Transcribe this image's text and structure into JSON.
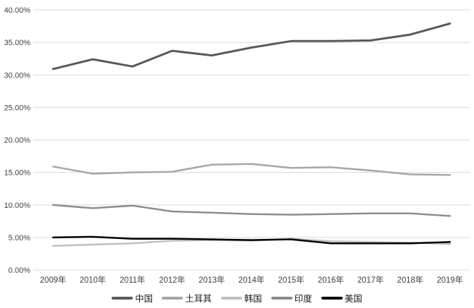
{
  "chart_data": {
    "type": "line",
    "title": "",
    "categories": [
      "2009年",
      "2010年",
      "2011年",
      "2012年",
      "2013年",
      "2014年",
      "2015年",
      "2016年",
      "2017年",
      "2018年",
      "2019年"
    ],
    "series": [
      {
        "id": "china",
        "name": "中国",
        "color": "#595959",
        "width": 3,
        "values": [
          30.9,
          32.4,
          31.3,
          33.7,
          33.0,
          34.2,
          35.2,
          35.2,
          35.3,
          36.2,
          37.9
        ]
      },
      {
        "id": "turkey",
        "name": "土耳其",
        "color": "#a6a6a6",
        "width": 2.5,
        "values": [
          15.9,
          14.8,
          15.0,
          15.1,
          16.2,
          16.3,
          15.7,
          15.8,
          15.3,
          14.7,
          14.6
        ]
      },
      {
        "id": "korea",
        "name": "韩国",
        "color": "#bfbfbf",
        "width": 2.5,
        "values": [
          3.7,
          3.9,
          4.1,
          4.5,
          4.6,
          4.5,
          4.8,
          4.4,
          4.3,
          4.2,
          4.0
        ]
      },
      {
        "id": "india",
        "name": "印度",
        "color": "#8c8c8c",
        "width": 2.5,
        "values": [
          10.0,
          9.5,
          9.9,
          9.0,
          8.8,
          8.6,
          8.5,
          8.6,
          8.7,
          8.7,
          8.3
        ]
      },
      {
        "id": "usa",
        "name": "美国",
        "color": "#000000",
        "width": 2.5,
        "values": [
          5.0,
          5.1,
          4.8,
          4.8,
          4.7,
          4.6,
          4.7,
          4.1,
          4.1,
          4.1,
          4.3
        ]
      }
    ],
    "xlabel": "",
    "ylabel": "",
    "y_axis": {
      "min": 0,
      "max": 40,
      "step": 5,
      "tick_labels": [
        "0.00%",
        "5.00%",
        "10.00%",
        "15.00%",
        "20.00%",
        "25.00%",
        "30.00%",
        "35.00%",
        "40.00%"
      ]
    },
    "grid": true,
    "gridline_color": "#d9d9d9",
    "background_color": "#ffffff",
    "legend_position": "bottom"
  }
}
